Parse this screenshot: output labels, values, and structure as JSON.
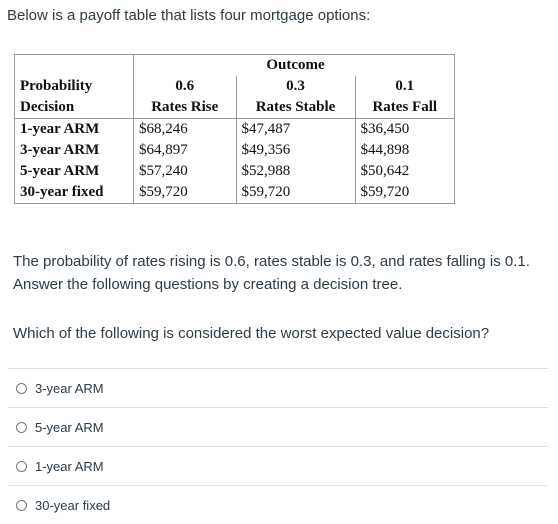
{
  "intro_text": "Below is a payoff table that lists four mortgage options:",
  "table": {
    "outcome_header": "Outcome",
    "probability_label": "Probability",
    "probabilities": [
      "0.6",
      "0.3",
      "0.1"
    ],
    "decision_label": "Decision",
    "outcomes": [
      "Rates Rise",
      "Rates Stable",
      "Rates Fall"
    ],
    "rows": [
      {
        "decision": "1-year ARM",
        "values": [
          "$68,246",
          "$47,487",
          "$36,450"
        ]
      },
      {
        "decision": "3-year ARM",
        "values": [
          "$64,897",
          "$49,356",
          "$44,898"
        ]
      },
      {
        "decision": "5-year ARM",
        "values": [
          "$57,240",
          "$52,988",
          "$50,642"
        ]
      },
      {
        "decision": "30-year fixed",
        "values": [
          "$59,720",
          "$59,720",
          "$59,720"
        ]
      }
    ]
  },
  "paragraph": "The probability of rates rising is 0.6, rates stable is 0.3, and rates falling is 0.1. Answer the following questions by creating a decision tree.",
  "question": "Which of the following is considered the worst expected value decision?",
  "options": [
    "3-year ARM",
    "5-year ARM",
    "1-year ARM",
    "30-year fixed"
  ]
}
